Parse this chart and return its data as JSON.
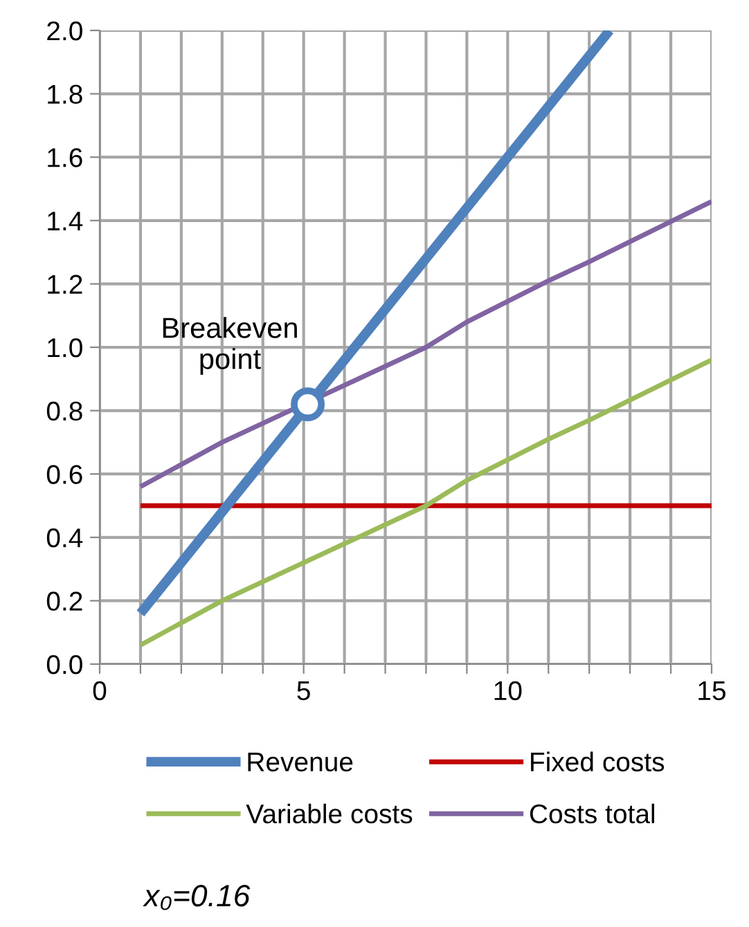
{
  "chart_data": {
    "type": "line",
    "xlim": [
      0,
      15
    ],
    "xticks": [
      0,
      {
        "value": 1,
        "label": null
      },
      {
        "value": 2,
        "label": null
      },
      {
        "value": 3,
        "label": null
      },
      {
        "value": 4,
        "label": null
      },
      5,
      {
        "value": 6,
        "label": null
      },
      {
        "value": 7,
        "label": null
      },
      {
        "value": 8,
        "label": null
      },
      {
        "value": 9,
        "label": null
      },
      10,
      {
        "value": 11,
        "label": null
      },
      {
        "value": 12,
        "label": null
      },
      {
        "value": 13,
        "label": null
      },
      {
        "value": 14,
        "label": null
      },
      15
    ],
    "ylim": [
      0,
      2
    ],
    "yticks": [
      {
        "value": 0,
        "label": "0.0"
      },
      0.2,
      0.4,
      0.6,
      0.8,
      {
        "value": 1,
        "label": "1.0"
      },
      1.2,
      1.4,
      1.6,
      1.8,
      {
        "value": 2,
        "label": "2.0"
      }
    ],
    "grid": true,
    "legend": "bottom",
    "marker": "none",
    "line_style": "solid",
    "series": [
      {
        "name": "Revenue",
        "color": "#4f81bd",
        "x": [
          1,
          2,
          3,
          4,
          5,
          6,
          7,
          8,
          9,
          10,
          11,
          12,
          12.5
        ],
        "values": [
          0.16,
          0.32,
          0.48,
          0.64,
          0.8,
          0.96,
          1.12,
          1.28,
          1.44,
          1.6,
          1.76,
          1.92,
          2.0
        ]
      },
      {
        "name": "Fixed costs",
        "color": "#c00000",
        "x": [
          1,
          15
        ],
        "values": [
          0.5,
          0.5
        ]
      },
      {
        "name": "Variable costs",
        "color": "#9bbb59",
        "x": [
          1,
          3,
          4,
          5,
          8,
          9,
          11,
          12,
          15
        ],
        "values": [
          0.06,
          0.2,
          0.26,
          0.32,
          0.5,
          0.58,
          0.71,
          0.77,
          0.96
        ]
      },
      {
        "name": "Costs total",
        "color": "#8064a2",
        "x": [
          1,
          3,
          4,
          5,
          8,
          9,
          11,
          12,
          15
        ],
        "values": [
          0.56,
          0.7,
          0.76,
          0.82,
          1.0,
          1.08,
          1.21,
          1.27,
          1.46
        ]
      },
      {
        "type": "scatter",
        "marker": "circle",
        "color": "#4f81bd",
        "x": [
          5.1
        ],
        "values": [
          0.82
        ]
      }
    ],
    "annotations": [
      "Breakeven\npoint",
      "x₀=0.16"
    ]
  }
}
